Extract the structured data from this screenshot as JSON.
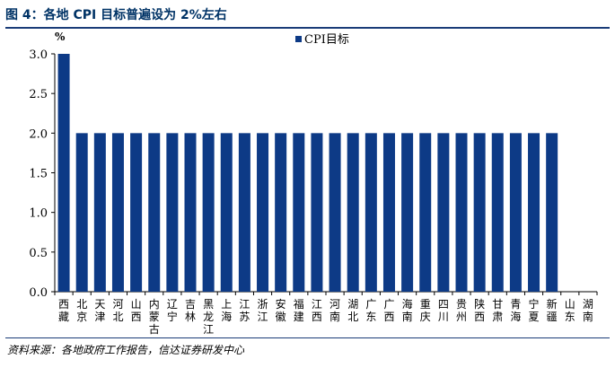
{
  "header": {
    "title": "图 4：各地 CPI 目标普遍设为 2%左右"
  },
  "footer": {
    "source": "资料来源：各地政府工作报告，信达证券研发中心"
  },
  "chart_data": {
    "type": "bar",
    "unit_label": "%",
    "ylim": [
      0,
      3
    ],
    "yticks": [
      "0.0",
      "0.5",
      "1.0",
      "1.5",
      "2.0",
      "2.5",
      "3.0"
    ],
    "legend": {
      "position": "top-center",
      "label": "CPI目标"
    },
    "colors": {
      "bar": "#0d3a86"
    },
    "grid": false,
    "categories": [
      "西藏",
      "北京",
      "天津",
      "河北",
      "山西",
      "内蒙古",
      "辽宁",
      "吉林",
      "黑龙江",
      "上海",
      "江苏",
      "浙江",
      "安徽",
      "福建",
      "江西",
      "河南",
      "湖北",
      "广东",
      "广西",
      "海南",
      "重庆",
      "四川",
      "贵州",
      "陕西",
      "甘肃",
      "青海",
      "宁夏",
      "新疆",
      "山东",
      "湖南"
    ],
    "series": [
      {
        "name": "CPI目标",
        "values": [
          3.0,
          2.0,
          2.0,
          2.0,
          2.0,
          2.0,
          2.0,
          2.0,
          2.0,
          2.0,
          2.0,
          2.0,
          2.0,
          2.0,
          2.0,
          2.0,
          2.0,
          2.0,
          2.0,
          2.0,
          2.0,
          2.0,
          2.0,
          2.0,
          2.0,
          2.0,
          2.0,
          2.0,
          0,
          0
        ]
      }
    ]
  }
}
